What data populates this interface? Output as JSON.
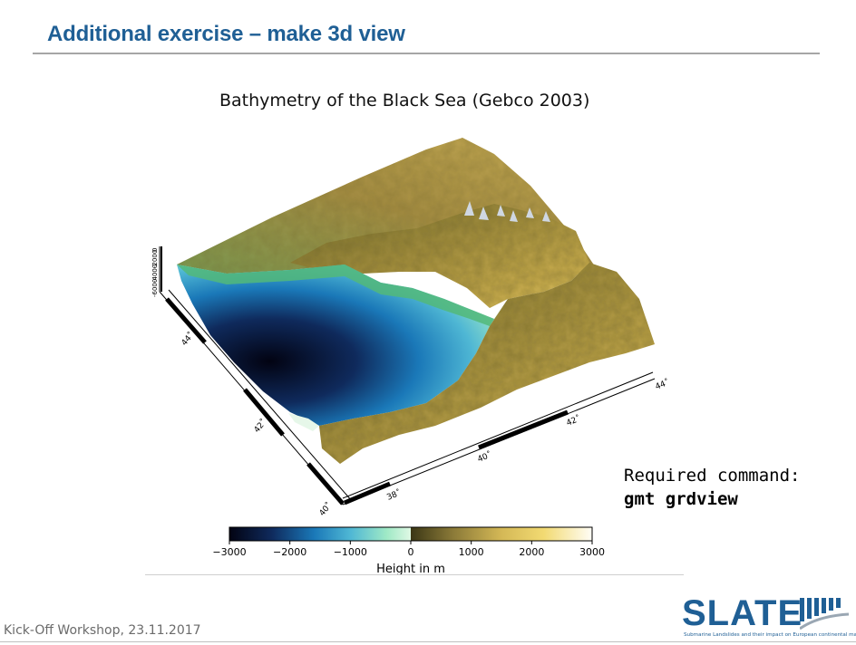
{
  "slide": {
    "title": "Additional exercise – make 3d view",
    "footer": "Kick-Off Workshop, 23.11.2017"
  },
  "figure": {
    "title": "Bathymetry of the Black Sea (Gebco 2003)",
    "z_ticks": [
      "0",
      "-2000",
      "-4000",
      "-6000"
    ]
  },
  "command_box": {
    "line1": "Required command:",
    "line2": "gmt grdview"
  },
  "logo": {
    "text": "SLATE",
    "subtitle": "Submarine Landslides and their impact on European continental margins"
  },
  "chart_data": {
    "type": "heatmap",
    "title": "Bathymetry of the Black Sea (Gebco 2003)",
    "xlabel": "",
    "ylabel": "",
    "colorbar": {
      "label": "Height in m",
      "range": [
        -3000,
        3000
      ],
      "ticks": [
        -3000,
        -2000,
        -1000,
        0,
        1000,
        2000,
        3000
      ],
      "tick_labels": [
        "−3000",
        "−2000",
        "−1000",
        "0",
        "1000",
        "2000",
        "3000"
      ],
      "stops": [
        {
          "value": -3000,
          "color": "#020312"
        },
        {
          "value": -2300,
          "color": "#0f2a5c"
        },
        {
          "value": -1600,
          "color": "#1a78b8"
        },
        {
          "value": -1000,
          "color": "#4fb7d4"
        },
        {
          "value": -400,
          "color": "#9fe9c6"
        },
        {
          "value": -1,
          "color": "#dff8e4"
        },
        {
          "value": 0,
          "color": "#3b3715"
        },
        {
          "value": 700,
          "color": "#8b7a38"
        },
        {
          "value": 1500,
          "color": "#d4b856"
        },
        {
          "value": 2200,
          "color": "#f2da72"
        },
        {
          "value": 3000,
          "color": "#fffdf6"
        }
      ]
    },
    "lat_axis": {
      "ticks": [
        "40˚",
        "42˚",
        "44˚"
      ]
    },
    "lon_axis": {
      "ticks": [
        "38˚",
        "40˚",
        "42˚",
        "44˚"
      ]
    },
    "z_axis": {
      "ticks": [
        0,
        -2000,
        -4000,
        -6000
      ]
    }
  }
}
